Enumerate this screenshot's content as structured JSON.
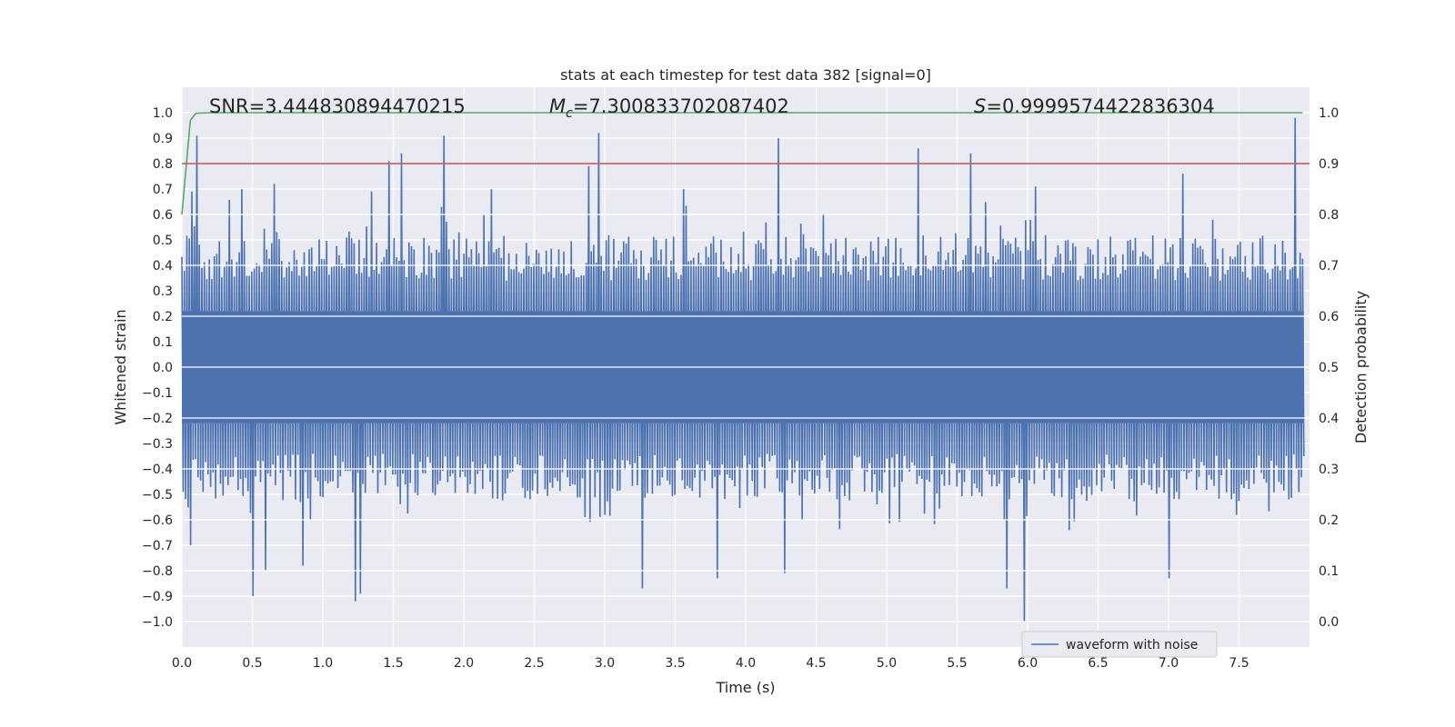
{
  "chart_data": {
    "type": "line",
    "title": "stats at each timestep for test data 382 [signal=0]",
    "xlabel": "Time (s)",
    "ylabel": "Whitened strain",
    "y2label": "Detection probability",
    "xlim": [
      0,
      8
    ],
    "ylim": [
      -1.1,
      1.1
    ],
    "y2lim": [
      -0.05,
      1.05
    ],
    "xticks": [
      "0.0",
      "0.5",
      "1.0",
      "1.5",
      "2.0",
      "2.5",
      "3.0",
      "3.5",
      "4.0",
      "4.5",
      "5.0",
      "5.5",
      "6.0",
      "6.5",
      "7.0",
      "7.5"
    ],
    "yticks": [
      "1.0",
      "0.9",
      "0.8",
      "0.7",
      "0.6",
      "0.5",
      "0.4",
      "0.3",
      "0.2",
      "0.1",
      "0.0",
      "−0.1",
      "−0.2",
      "−0.3",
      "−0.4",
      "−0.5",
      "−0.6",
      "−0.7",
      "−0.8",
      "−0.9",
      "−1.0"
    ],
    "y2ticks": [
      "1.0",
      "0.9",
      "0.8",
      "0.7",
      "0.6",
      "0.5",
      "0.4",
      "0.3",
      "0.2",
      "0.1",
      "0.0"
    ],
    "annotations": {
      "snr": "SNR=3.444830894470215",
      "mc_symbol": "M",
      "mc_sub": "c",
      "mc_value": "=7.300833702087402",
      "s_symbol": "S",
      "s_value": "=0.9999574422836304"
    },
    "legend": {
      "label": "waveform with noise",
      "location": "lower-right"
    },
    "series": [
      {
        "name": "waveform with noise",
        "axis": "left",
        "color": "#4c72b0",
        "envelope_positive_peaks": [
          {
            "x": 0.06,
            "y": 0.69
          },
          {
            "x": 0.11,
            "y": 0.91
          },
          {
            "x": 0.42,
            "y": 0.7
          },
          {
            "x": 0.65,
            "y": 0.72
          },
          {
            "x": 1.35,
            "y": 0.69
          },
          {
            "x": 1.47,
            "y": 0.81
          },
          {
            "x": 1.55,
            "y": 0.84
          },
          {
            "x": 1.85,
            "y": 0.91
          },
          {
            "x": 2.2,
            "y": 0.7
          },
          {
            "x": 2.88,
            "y": 0.79
          },
          {
            "x": 2.95,
            "y": 0.92
          },
          {
            "x": 3.55,
            "y": 0.7
          },
          {
            "x": 4.22,
            "y": 0.9
          },
          {
            "x": 5.22,
            "y": 0.86
          },
          {
            "x": 5.59,
            "y": 0.84
          },
          {
            "x": 6.05,
            "y": 0.71
          },
          {
            "x": 7.1,
            "y": 0.76
          },
          {
            "x": 7.9,
            "y": 0.98
          }
        ],
        "envelope_negative_peaks": [
          {
            "x": 0.05,
            "y": -0.7
          },
          {
            "x": 0.5,
            "y": -0.9
          },
          {
            "x": 0.59,
            "y": -0.8
          },
          {
            "x": 0.86,
            "y": -0.78
          },
          {
            "x": 1.22,
            "y": -0.92
          },
          {
            "x": 1.27,
            "y": -0.89
          },
          {
            "x": 3.27,
            "y": -0.87
          },
          {
            "x": 3.8,
            "y": -0.83
          },
          {
            "x": 4.27,
            "y": -0.81
          },
          {
            "x": 5.85,
            "y": -0.87
          },
          {
            "x": 5.98,
            "y": -1.0
          },
          {
            "x": 7.0,
            "y": -0.83
          }
        ]
      },
      {
        "name": "detection probability",
        "axis": "right",
        "color": "#55a868",
        "x": [
          0,
          0.06,
          0.1,
          0.2,
          7.95
        ],
        "y": [
          0.8,
          0.985,
          0.999,
          1.0,
          1.0
        ]
      },
      {
        "name": "threshold",
        "axis": "right",
        "color": "#c44e52",
        "x": [
          0,
          8
        ],
        "y": [
          0.9,
          0.9
        ]
      }
    ]
  }
}
